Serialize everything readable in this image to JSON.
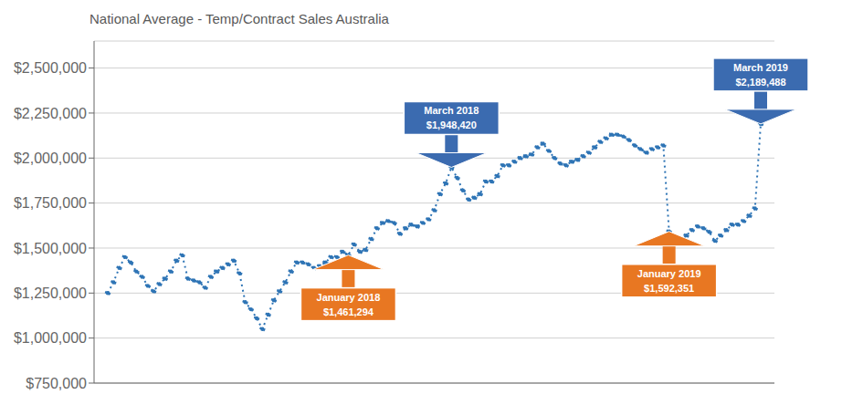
{
  "chart_data": {
    "type": "line",
    "title": "National Average - Temp/Contract Sales Australia",
    "color": "#2E74B5",
    "marker": "circle",
    "line_style": "dotted",
    "grid": true,
    "tick_labels": "y",
    "ylim": [
      750000,
      2650000
    ],
    "yticks": [
      {
        "value": 750000,
        "label": "$750,000"
      },
      {
        "value": 1000000,
        "label": "$1,000,000"
      },
      {
        "value": 1250000,
        "label": "$1,250,000"
      },
      {
        "value": 1500000,
        "label": "$1,500,000"
      },
      {
        "value": 1750000,
        "label": "$1,750,000"
      },
      {
        "value": 2000000,
        "label": "$2,000,000"
      },
      {
        "value": 2250000,
        "label": "$2,250,000"
      },
      {
        "value": 2500000,
        "label": "$2,500,000"
      }
    ],
    "values": [
      1250000,
      1310000,
      1390000,
      1450000,
      1420000,
      1370000,
      1340000,
      1290000,
      1260000,
      1300000,
      1330000,
      1370000,
      1430000,
      1460000,
      1330000,
      1320000,
      1310000,
      1280000,
      1340000,
      1370000,
      1390000,
      1410000,
      1430000,
      1360000,
      1200000,
      1160000,
      1110000,
      1050000,
      1130000,
      1210000,
      1260000,
      1310000,
      1370000,
      1420000,
      1420000,
      1410000,
      1390000,
      1400000,
      1420000,
      1450000,
      1450000,
      1480000,
      1461294,
      1520000,
      1480000,
      1490000,
      1550000,
      1610000,
      1640000,
      1650000,
      1640000,
      1580000,
      1610000,
      1630000,
      1620000,
      1640000,
      1660000,
      1710000,
      1800000,
      1860000,
      1948420,
      1890000,
      1820000,
      1770000,
      1780000,
      1800000,
      1870000,
      1870000,
      1900000,
      1960000,
      1960000,
      1980000,
      2000000,
      2010000,
      2020000,
      2060000,
      2080000,
      2040000,
      2000000,
      1970000,
      1960000,
      1980000,
      1990000,
      2010000,
      2030000,
      2060000,
      2090000,
      2110000,
      2130000,
      2130000,
      2120000,
      2100000,
      2070000,
      2050000,
      2030000,
      2050000,
      2060000,
      2070000,
      1592351,
      1560000,
      1530000,
      1570000,
      1600000,
      1620000,
      1610000,
      1590000,
      1540000,
      1570000,
      1600000,
      1630000,
      1630000,
      1650000,
      1680000,
      1720000,
      2189488
    ],
    "annotations": [
      {
        "text": [
          "March 2018",
          "$1,948,420"
        ],
        "value": 1948420,
        "color": "#3B6BB0"
      },
      {
        "text": [
          "March 2019",
          "$2,189,488"
        ],
        "value": 2189488,
        "color": "#3B6BB0"
      },
      {
        "text": [
          "January 2018",
          "$1,461,294"
        ],
        "value": 1461294,
        "color": "#E87722"
      },
      {
        "text": [
          "January 2019",
          "$1,592,351"
        ],
        "value": 1592351,
        "color": "#E87722"
      }
    ]
  }
}
